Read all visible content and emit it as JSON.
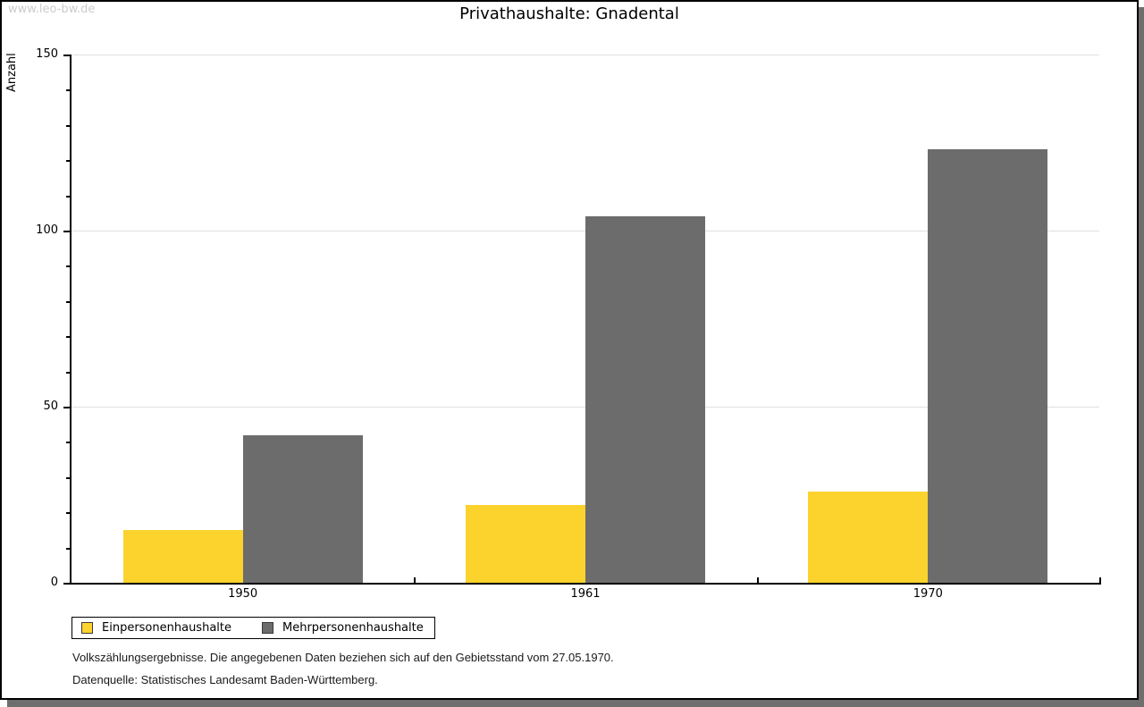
{
  "watermark": "www.leo-bw.de",
  "chart_data": {
    "type": "bar",
    "title": "Privathaushalte: Gnadental",
    "ylabel": "Anzahl",
    "xlabel": "",
    "categories": [
      "1950",
      "1961",
      "1970"
    ],
    "series": [
      {
        "name": "Einpersonenhaushalte",
        "color": "#fcd32d",
        "values": [
          15,
          22,
          26
        ]
      },
      {
        "name": "Mehrpersonenhaushalte",
        "color": "#6c6c6c",
        "values": [
          42,
          104,
          123
        ]
      }
    ],
    "ylim": [
      0,
      150
    ],
    "yticks": [
      0,
      50,
      100,
      150
    ],
    "minor_tick_step": 10,
    "grid": "horizontal-major",
    "legend_position": "bottom-left"
  },
  "colors": {
    "grid": "#e0e0e0",
    "axis": "#000000",
    "watermark": "#cccccc",
    "frame_shadow": "#6e6e6e"
  },
  "footer": {
    "line1": "Volkszählungsergebnisse. Die angegebenen Daten beziehen sich auf den Gebietsstand vom 27.05.1970.",
    "line2": "Datenquelle: Statistisches Landesamt Baden-Württemberg."
  }
}
